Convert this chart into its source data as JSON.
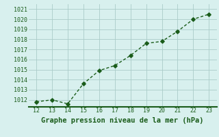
{
  "x": [
    12,
    13,
    14,
    15,
    16,
    17,
    18,
    19,
    20,
    21,
    22,
    23
  ],
  "y": [
    1011.8,
    1012.0,
    1011.6,
    1013.6,
    1014.9,
    1015.4,
    1016.4,
    1017.6,
    1017.8,
    1018.8,
    1020.0,
    1020.5
  ],
  "line_color": "#1a5c1a",
  "marker": "D",
  "marker_size": 2.8,
  "bg_color": "#d8f0ee",
  "grid_color": "#aaccc8",
  "title": "Graphe pression niveau de la mer (hPa)",
  "title_color": "#1a5c1a",
  "title_fontsize": 7.5,
  "xlim": [
    11.5,
    23.5
  ],
  "ylim": [
    1011.3,
    1021.5
  ],
  "xticks": [
    12,
    13,
    14,
    15,
    16,
    17,
    18,
    19,
    20,
    21,
    22,
    23
  ],
  "yticks": [
    1012,
    1013,
    1014,
    1015,
    1016,
    1017,
    1018,
    1019,
    1020,
    1021
  ],
  "tick_fontsize": 6.0,
  "tick_color": "#1a5c1a",
  "linewidth": 1.0,
  "border_color": "#1a5c1a"
}
